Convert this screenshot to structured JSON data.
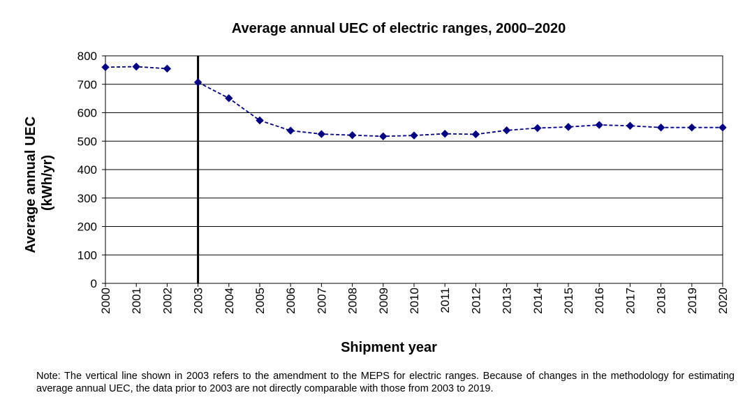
{
  "chart_data": {
    "type": "line",
    "title": "Average annual UEC of electric ranges, 2000–2020",
    "xlabel": "Shipment year",
    "ylabel_lines": [
      "Average annual UEC",
      "(kWh/yr)"
    ],
    "x": [
      "2000",
      "2001",
      "2002",
      "2003",
      "2004",
      "2005",
      "2006",
      "2007",
      "2008",
      "2009",
      "2010",
      "2011",
      "2012",
      "2013",
      "2014",
      "2015",
      "2016",
      "2017",
      "2018",
      "2019",
      "2020"
    ],
    "yticks": [
      "0",
      "100",
      "200",
      "300",
      "400",
      "500",
      "600",
      "700",
      "800"
    ],
    "ylim": [
      0,
      800
    ],
    "grid": true,
    "legend": "none",
    "series": [
      {
        "segments": [
          {
            "x": [
              "2000",
              "2001",
              "2002"
            ],
            "y": [
              760,
              762,
              755
            ]
          },
          {
            "x": [
              "2003",
              "2004",
              "2005",
              "2006",
              "2007",
              "2008",
              "2009",
              "2010",
              "2011",
              "2012",
              "2013",
              "2014",
              "2015",
              "2016",
              "2017",
              "2018",
              "2019",
              "2020"
            ],
            "y": [
              707,
              651,
              573,
              537,
              525,
              521,
              517,
              520,
              526,
              524,
              538,
              546,
              550,
              557,
              554,
              548,
              548,
              548
            ]
          }
        ]
      }
    ],
    "marker_line_at": "2003",
    "colors": {
      "series": "#000080",
      "reference_line": "#000000",
      "grid": "#000000"
    }
  },
  "note": "Note: The vertical line shown in 2003 refers to the amendment to the MEPS for electric ranges. Because of changes in the methodology for estimating average annual UEC, the data prior to 2003 are not directly comparable with those from 2003 to 2019."
}
